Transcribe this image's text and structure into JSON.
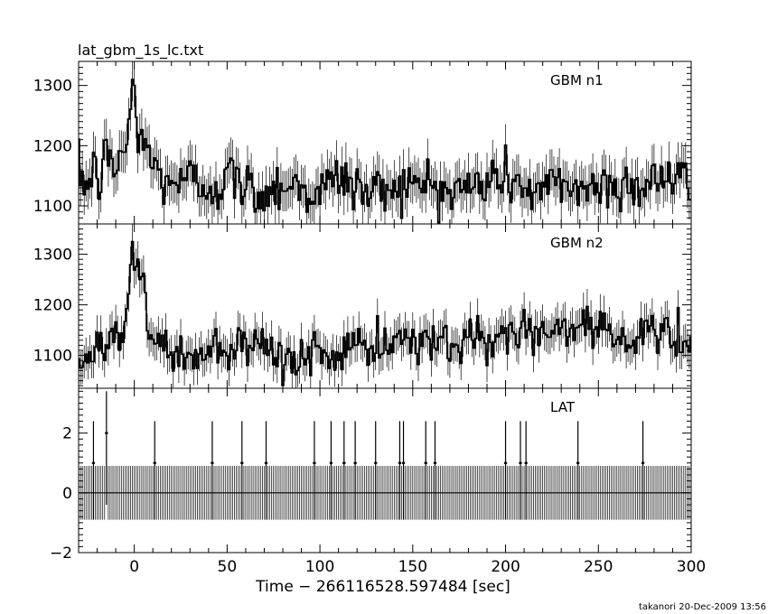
{
  "title": "lat_gbm_1s_lc.txt",
  "footer": "takanori 20-Dec-2009 13:56",
  "chart_data": {
    "type": "line",
    "layout": "stacked-panels-shared-x",
    "xlabel": "Time − 266116528.597484 [sec]",
    "xlim": [
      -30,
      300
    ],
    "xticks": [
      0,
      50,
      100,
      150,
      200,
      250,
      300
    ],
    "x_tick_labels": [
      "0",
      "50",
      "100",
      "150",
      "200",
      "250",
      "300"
    ],
    "x_step": 1,
    "line_color": "#000000",
    "series": [
      {
        "name": "GBM n1",
        "ylim": [
          1070,
          1340
        ],
        "yticks": [
          1100,
          1200,
          1300
        ],
        "y_tick_labels": [
          "1100",
          "1200",
          "1300"
        ],
        "approx_peak": {
          "x": -1,
          "y": 1310
        },
        "x": [
          -28,
          -25,
          -22,
          -19,
          -16,
          -13,
          -10,
          -7,
          -4,
          -1,
          2,
          5,
          8,
          11,
          14,
          17,
          20,
          25,
          30,
          35,
          40,
          45,
          50,
          60,
          70,
          80,
          90,
          100,
          110,
          120,
          130,
          140,
          150,
          160,
          170,
          180,
          190,
          200,
          210,
          220,
          230,
          240,
          250,
          260,
          270,
          280,
          290,
          298
        ],
        "y": [
          1150,
          1130,
          1160,
          1140,
          1180,
          1170,
          1160,
          1190,
          1200,
          1310,
          1200,
          1230,
          1180,
          1160,
          1150,
          1140,
          1150,
          1130,
          1150,
          1130,
          1140,
          1130,
          1150,
          1130,
          1120,
          1140,
          1130,
          1120,
          1150,
          1130,
          1120,
          1140,
          1130,
          1140,
          1120,
          1130,
          1140,
          1150,
          1130,
          1120,
          1140,
          1130,
          1130,
          1140,
          1130,
          1150,
          1140,
          1140
        ]
      },
      {
        "name": "GBM n2",
        "ylim": [
          1035,
          1360
        ],
        "yticks": [
          1100,
          1200,
          1300
        ],
        "y_tick_labels": [
          "1100",
          "1200",
          "1300"
        ],
        "approx_peak": {
          "x": -1,
          "y": 1325
        },
        "x": [
          -28,
          -25,
          -22,
          -19,
          -16,
          -13,
          -10,
          -7,
          -4,
          -1,
          2,
          5,
          8,
          11,
          14,
          17,
          20,
          25,
          30,
          35,
          40,
          45,
          50,
          60,
          70,
          80,
          90,
          100,
          110,
          120,
          130,
          140,
          150,
          160,
          170,
          180,
          190,
          200,
          210,
          220,
          230,
          240,
          250,
          260,
          270,
          280,
          290,
          298
        ],
        "y": [
          1080,
          1110,
          1090,
          1130,
          1120,
          1130,
          1150,
          1140,
          1180,
          1325,
          1290,
          1220,
          1160,
          1130,
          1120,
          1110,
          1100,
          1110,
          1100,
          1090,
          1100,
          1110,
          1100,
          1110,
          1100,
          1090,
          1100,
          1110,
          1100,
          1120,
          1110,
          1120,
          1130,
          1120,
          1130,
          1140,
          1130,
          1140,
          1150,
          1140,
          1150,
          1160,
          1170,
          1140,
          1120,
          1150,
          1130,
          1120
        ]
      },
      {
        "name": "LAT",
        "ylim": [
          -2,
          3.5
        ],
        "yticks": [
          -2,
          0,
          2
        ],
        "y_tick_labels": [
          "−2",
          "0",
          "2"
        ],
        "baseline_error": 0.9,
        "event_error": 1.4,
        "event_values": [
          1,
          2
        ],
        "events_x": [
          -22,
          -15,
          11,
          42,
          58,
          71,
          97,
          106,
          113,
          119,
          130,
          143,
          145,
          157,
          162,
          200,
          208,
          211,
          239,
          274
        ],
        "events_y": [
          1,
          2,
          1,
          1,
          1,
          1,
          1,
          1,
          1,
          1,
          1,
          1,
          1,
          1,
          1,
          1,
          1,
          1,
          1,
          1
        ]
      }
    ]
  }
}
